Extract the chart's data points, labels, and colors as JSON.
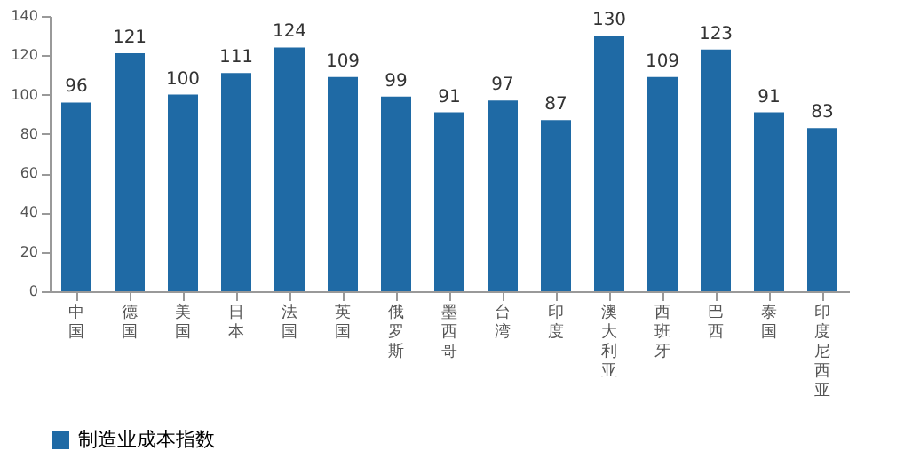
{
  "chart_data": {
    "type": "bar",
    "categories": [
      "中国",
      "德国",
      "美国",
      "日本",
      "法国",
      "英国",
      "俄罗斯",
      "墨西哥",
      "台湾",
      "印度",
      "澳大利亚",
      "西班牙",
      "巴西",
      "泰国",
      "印度尼西亚"
    ],
    "series": [
      {
        "name": "制造业成本指数",
        "color": "#1f6aa5",
        "values": [
          96,
          121,
          100,
          111,
          124,
          109,
          99,
          91,
          97,
          87,
          130,
          109,
          123,
          91,
          83
        ]
      }
    ],
    "ylim": [
      0,
      140
    ],
    "yticks": [
      0,
      20,
      40,
      60,
      80,
      100,
      120,
      140
    ],
    "data_labels": true,
    "grid": false,
    "legend": "bottom"
  }
}
